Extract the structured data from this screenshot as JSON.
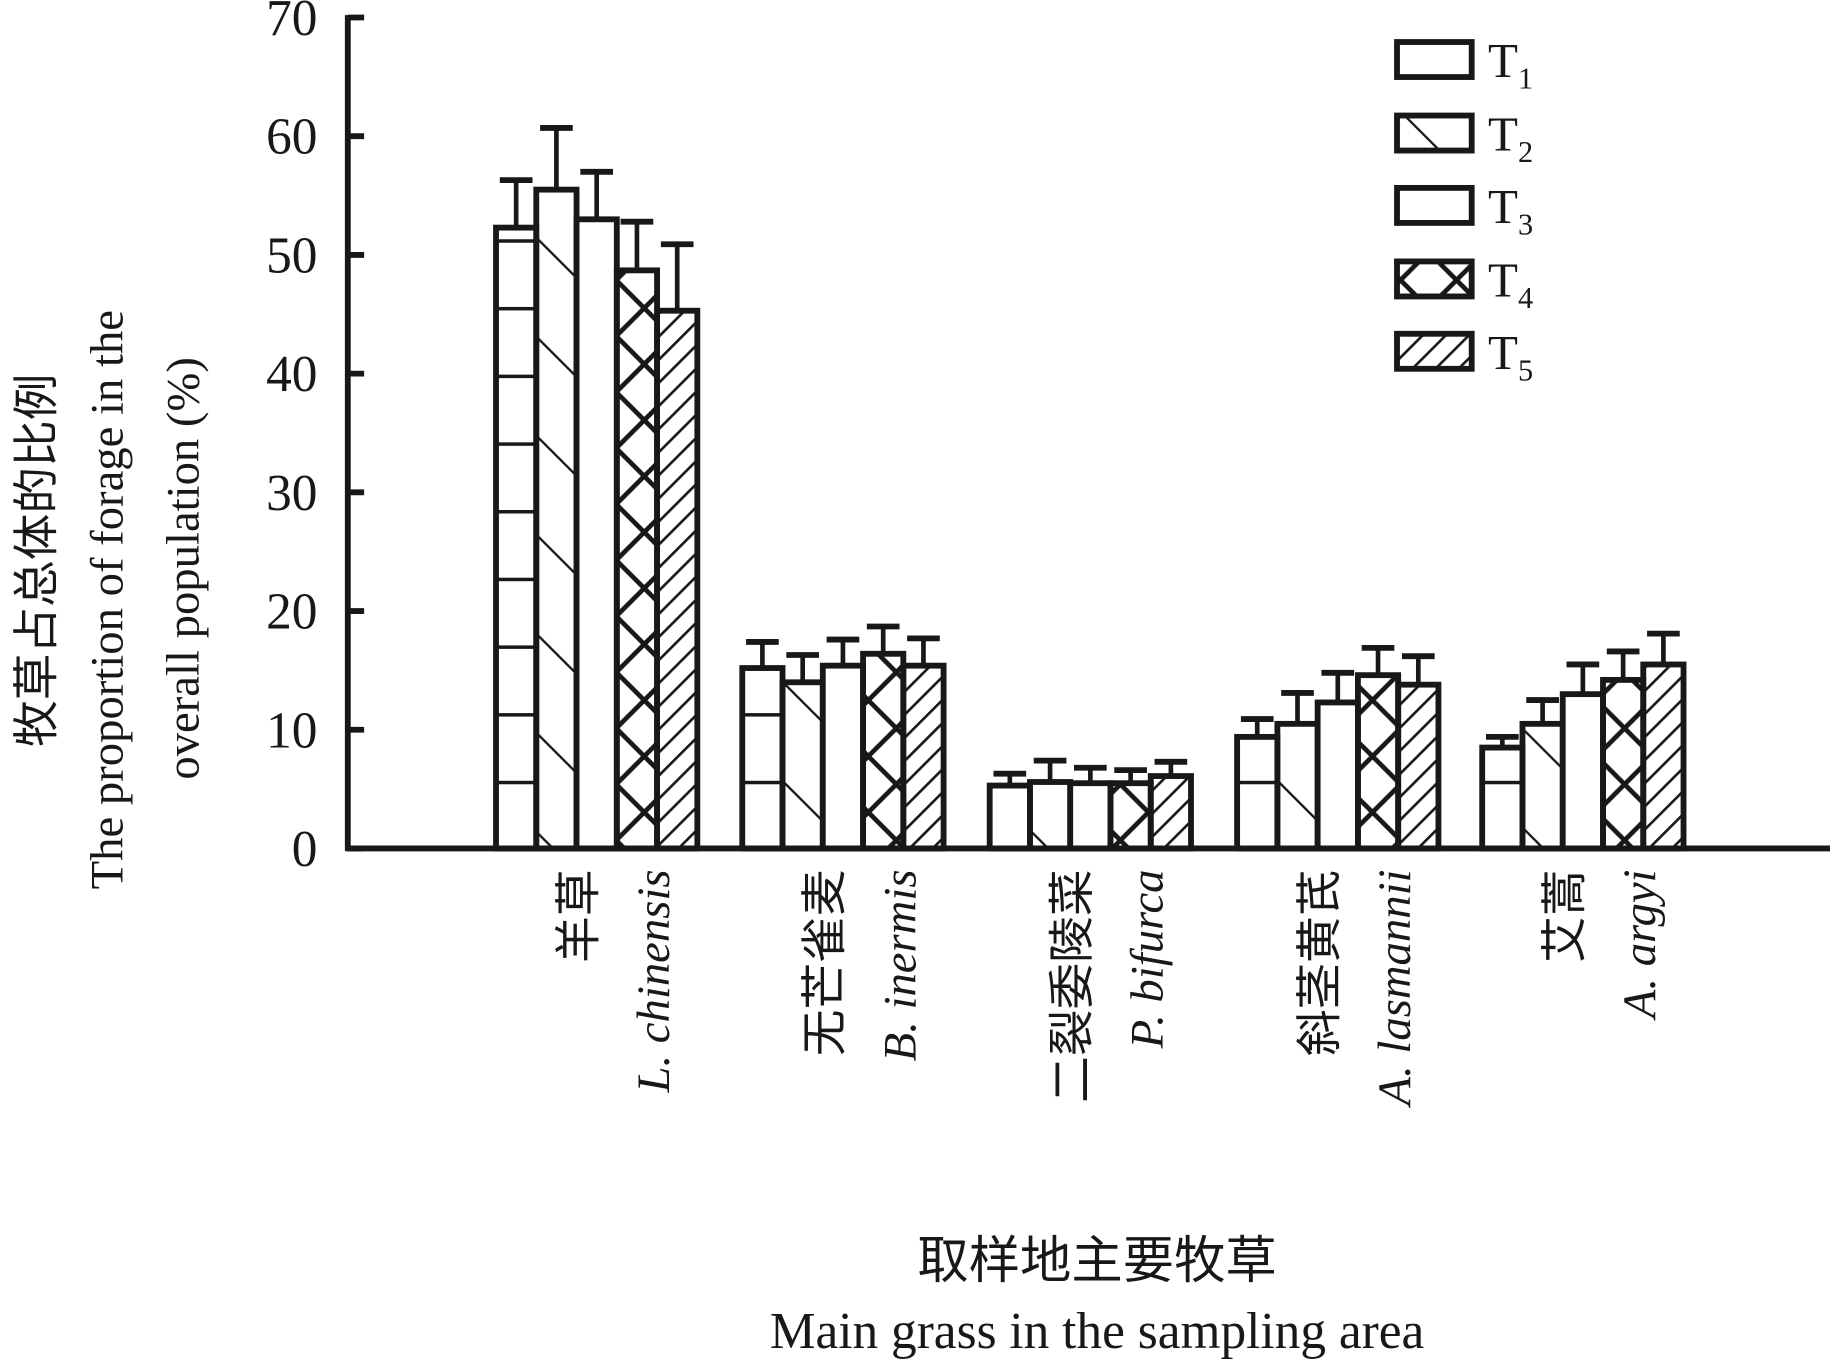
{
  "chart_data": {
    "type": "bar",
    "title": "",
    "ylabel_lines": [
      "牧草占总体的比例",
      "The proportion of forage in the",
      "overall population (%)"
    ],
    "xlabel_lines": [
      "取样地主要牧草",
      "Main grass in the sampling area"
    ],
    "ylim": [
      0,
      70
    ],
    "yticks": [
      "0",
      "10",
      "20",
      "30",
      "40",
      "50",
      "60",
      "70"
    ],
    "grid": false,
    "legend_placement": "top-right",
    "categories": [
      {
        "cn": "羊草",
        "latin": "L. chinensis"
      },
      {
        "cn": "无芒雀麦",
        "latin": "B. inermis"
      },
      {
        "cn": "二裂委陵菜",
        "latin": "P. bifurca"
      },
      {
        "cn": "斜茎黄芪",
        "latin": "A. lasmannii"
      },
      {
        "cn": "艾蒿",
        "latin": "A. argyi"
      }
    ],
    "series": [
      {
        "name": "T",
        "sub": "1",
        "pattern": "horizontal",
        "values": [
          52.3,
          15.2,
          5.3,
          9.4,
          8.5
        ],
        "errors": [
          4.0,
          2.2,
          1.0,
          1.5,
          0.9
        ]
      },
      {
        "name": "T",
        "sub": "2",
        "pattern": "backslash",
        "values": [
          55.5,
          14.0,
          5.6,
          10.5,
          10.5
        ],
        "errors": [
          5.2,
          2.3,
          1.8,
          2.6,
          2.0
        ]
      },
      {
        "name": "T",
        "sub": "3",
        "pattern": "none",
        "values": [
          53.0,
          15.4,
          5.5,
          12.3,
          13.0
        ],
        "errors": [
          4.0,
          2.2,
          1.3,
          2.5,
          2.5
        ]
      },
      {
        "name": "T",
        "sub": "4",
        "pattern": "crosshatch",
        "values": [
          48.7,
          16.4,
          5.5,
          14.6,
          14.2
        ],
        "errors": [
          4.1,
          2.3,
          1.1,
          2.3,
          2.4
        ]
      },
      {
        "name": "T",
        "sub": "5",
        "pattern": "slash",
        "values": [
          45.3,
          15.4,
          6.1,
          13.8,
          15.5
        ],
        "errors": [
          5.6,
          2.3,
          1.2,
          2.4,
          2.6
        ]
      }
    ]
  }
}
